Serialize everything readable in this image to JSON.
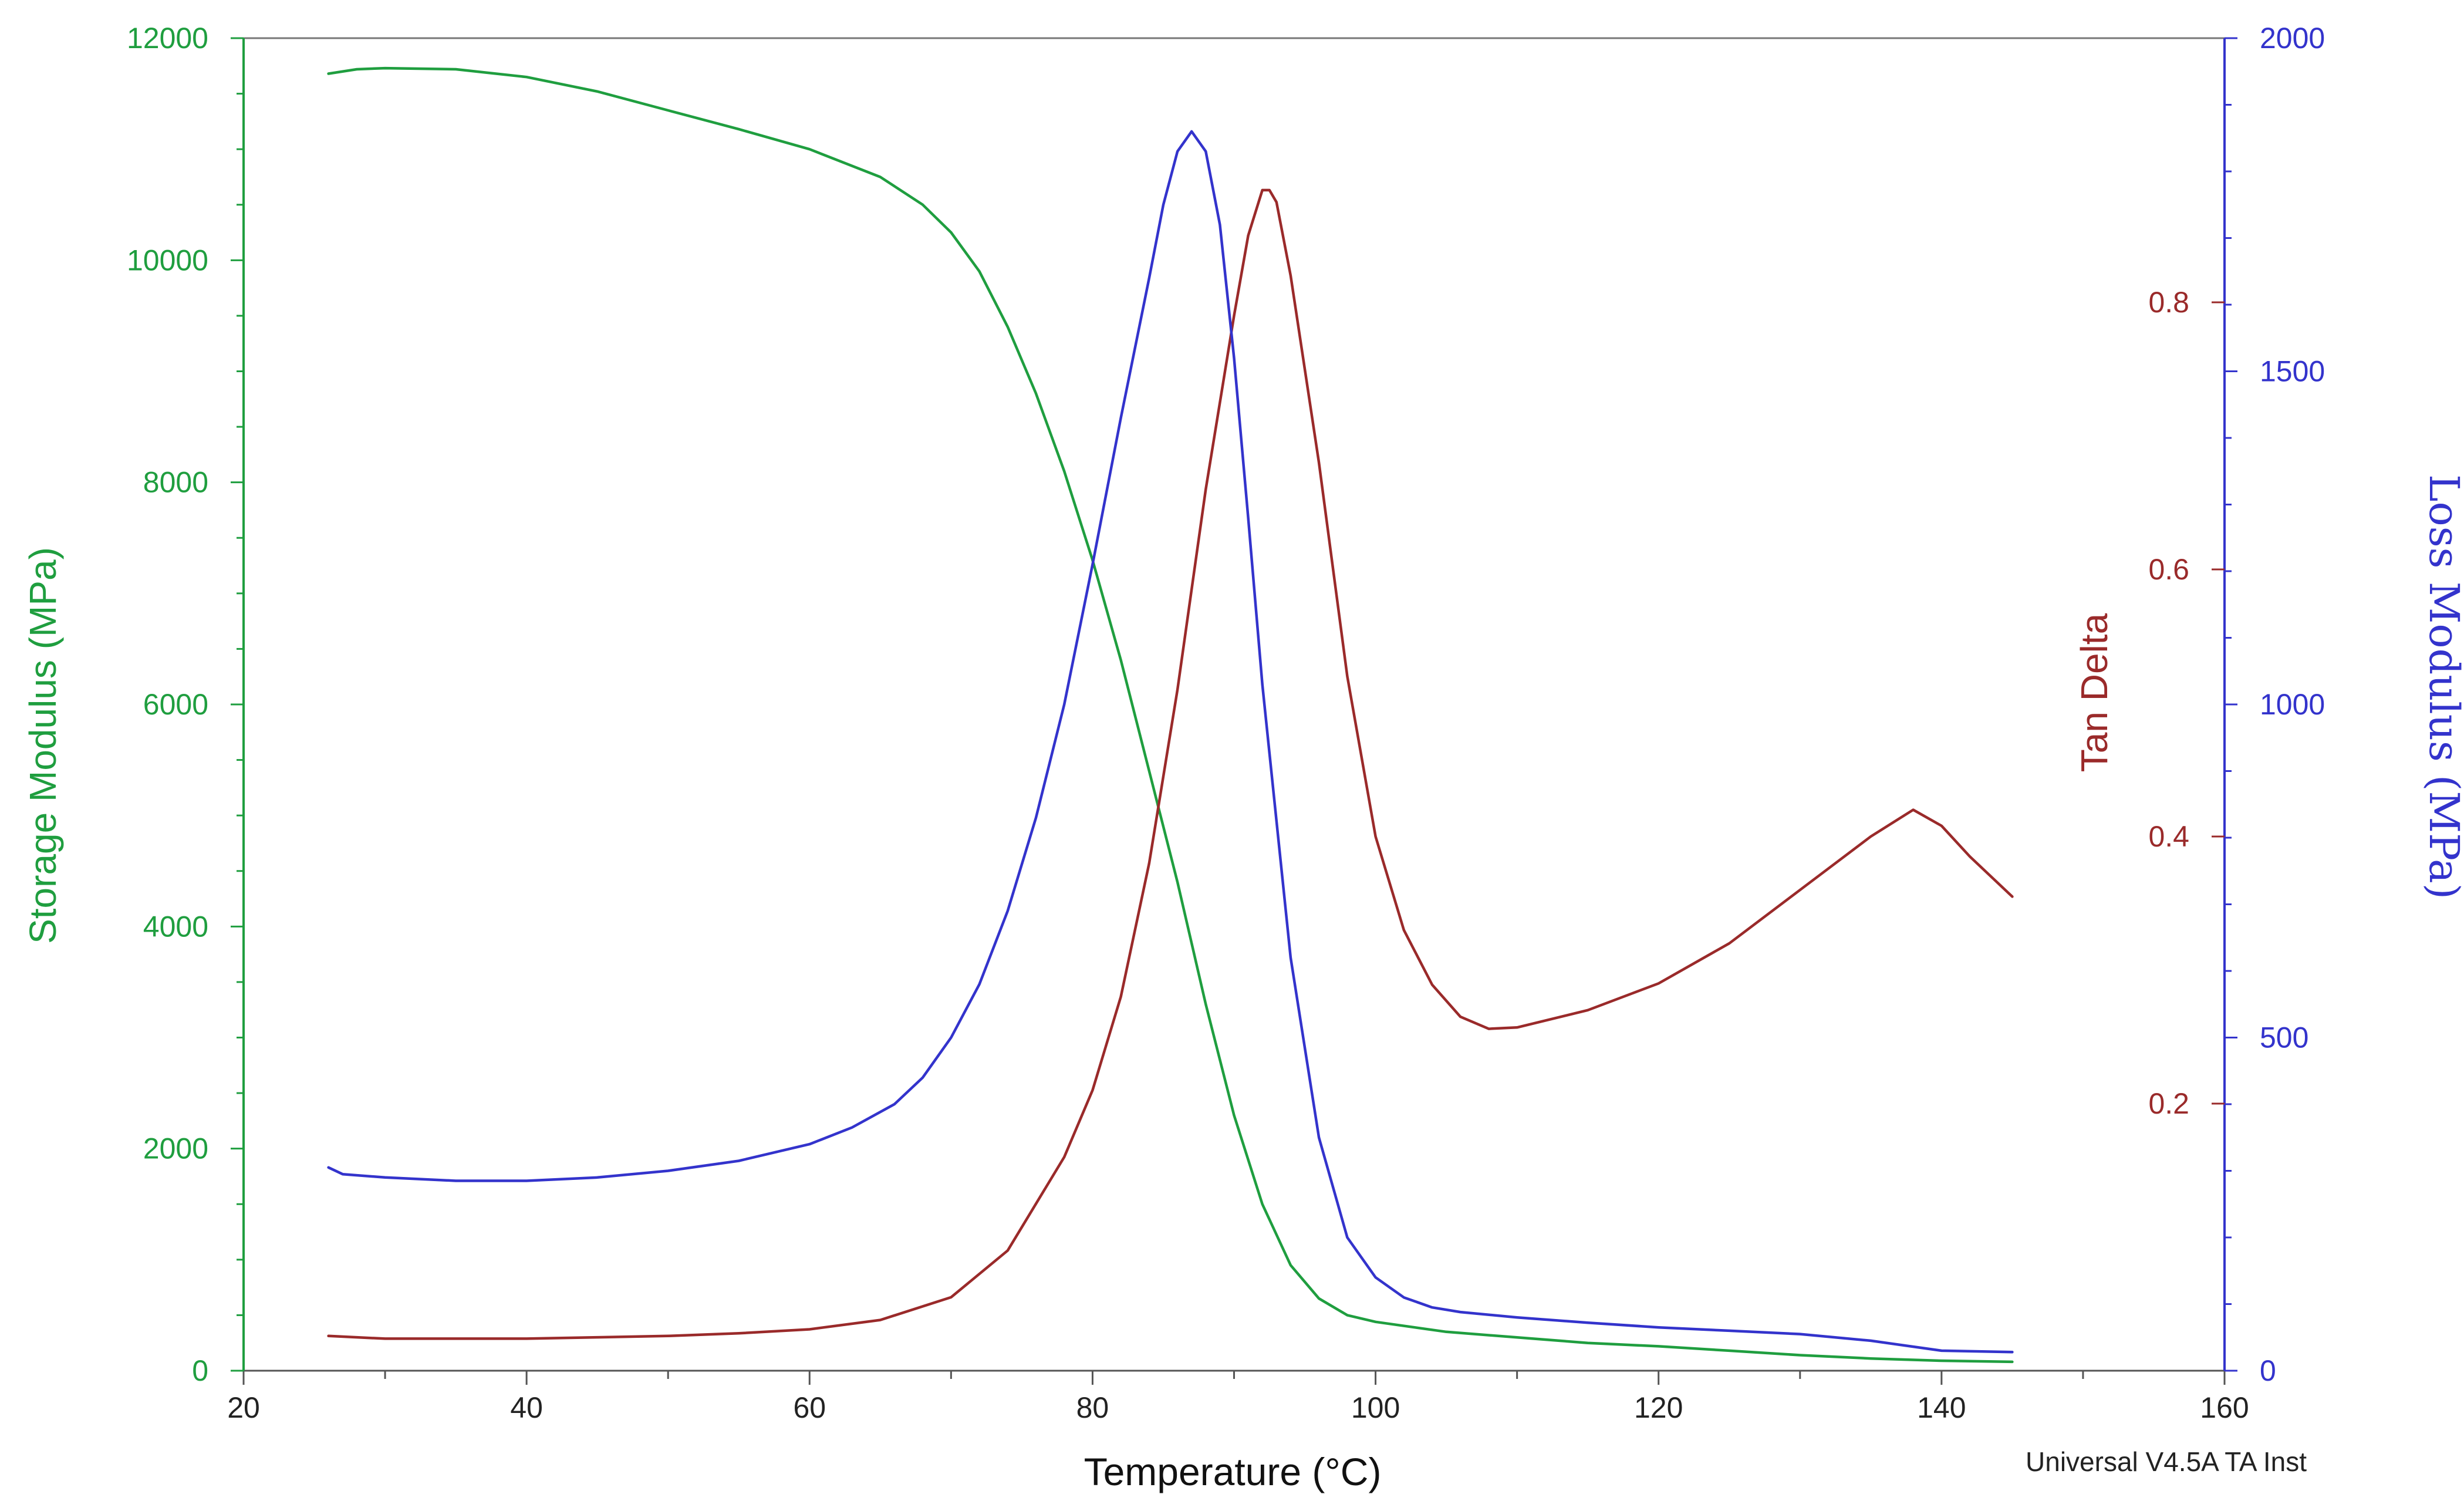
{
  "chart_data": {
    "type": "line",
    "title": "",
    "xlabel": "Temperature (°C)",
    "xlim": [
      20,
      160
    ],
    "xticks": [
      20,
      40,
      60,
      80,
      100,
      120,
      140,
      160
    ],
    "footer_note": "Universal V4.5A TA Inst",
    "axes": {
      "storage": {
        "label": "Storage Modulus (MPa)",
        "color": "#1f9e3f",
        "ylim": [
          0,
          12000
        ],
        "ticks": [
          0,
          2000,
          4000,
          6000,
          8000,
          10000,
          12000
        ]
      },
      "tan": {
        "label": "Tan Delta",
        "color": "#9a2a2a",
        "ticks": [
          0.2,
          0.4,
          0.6,
          0.8
        ],
        "value_at_bottom": 0,
        "value_per_0_2": 0.2
      },
      "loss": {
        "label": "Loss Modulus (MPa)",
        "color": "#3333cc",
        "ylim": [
          0,
          2000
        ],
        "ticks": [
          0,
          500,
          1000,
          1500,
          2000
        ]
      }
    },
    "series": [
      {
        "name": "Storage Modulus (MPa)",
        "axis": "storage",
        "x": [
          26,
          28,
          30,
          35,
          40,
          45,
          50,
          55,
          60,
          65,
          68,
          70,
          72,
          74,
          76,
          78,
          80,
          82,
          84,
          86,
          88,
          90,
          92,
          94,
          96,
          98,
          100,
          105,
          110,
          115,
          120,
          125,
          130,
          135,
          140,
          145
        ],
        "y": [
          11680,
          11720,
          11730,
          11720,
          11650,
          11520,
          11350,
          11180,
          11000,
          10750,
          10500,
          10250,
          9900,
          9400,
          8800,
          8100,
          7300,
          6400,
          5400,
          4400,
          3300,
          2300,
          1500,
          950,
          650,
          500,
          440,
          350,
          300,
          250,
          220,
          180,
          140,
          110,
          90,
          80
        ]
      },
      {
        "name": "Tan Delta",
        "axis": "tan",
        "x": [
          26,
          30,
          35,
          40,
          45,
          50,
          55,
          60,
          65,
          70,
          74,
          78,
          80,
          82,
          84,
          86,
          88,
          90,
          91,
          92,
          92.5,
          93,
          94,
          96,
          98,
          100,
          102,
          104,
          106,
          108,
          110,
          115,
          120,
          125,
          130,
          135,
          138,
          140,
          142,
          145
        ],
        "y": [
          0.026,
          0.024,
          0.024,
          0.024,
          0.025,
          0.026,
          0.028,
          0.031,
          0.038,
          0.055,
          0.09,
          0.16,
          0.21,
          0.28,
          0.38,
          0.51,
          0.66,
          0.79,
          0.85,
          0.884,
          0.884,
          0.875,
          0.82,
          0.68,
          0.52,
          0.4,
          0.33,
          0.289,
          0.265,
          0.256,
          0.257,
          0.27,
          0.29,
          0.32,
          0.36,
          0.4,
          0.42,
          0.408,
          0.385,
          0.355
        ]
      },
      {
        "name": "Loss Modulus (MPa)",
        "axis": "loss",
        "x": [
          26,
          27,
          30,
          35,
          40,
          45,
          50,
          55,
          60,
          63,
          66,
          68,
          70,
          72,
          74,
          76,
          78,
          80,
          82,
          84,
          85,
          86,
          87,
          88,
          89,
          90,
          91,
          92,
          94,
          96,
          98,
          100,
          102,
          104,
          106,
          110,
          115,
          120,
          125,
          130,
          135,
          140,
          145
        ],
        "y": [
          305,
          295,
          290,
          285,
          285,
          290,
          300,
          315,
          340,
          365,
          400,
          440,
          500,
          580,
          690,
          830,
          1000,
          1210,
          1430,
          1640,
          1750,
          1830,
          1860,
          1830,
          1720,
          1520,
          1280,
          1030,
          620,
          350,
          200,
          140,
          110,
          95,
          88,
          80,
          72,
          65,
          60,
          55,
          45,
          30,
          28
        ]
      }
    ]
  }
}
